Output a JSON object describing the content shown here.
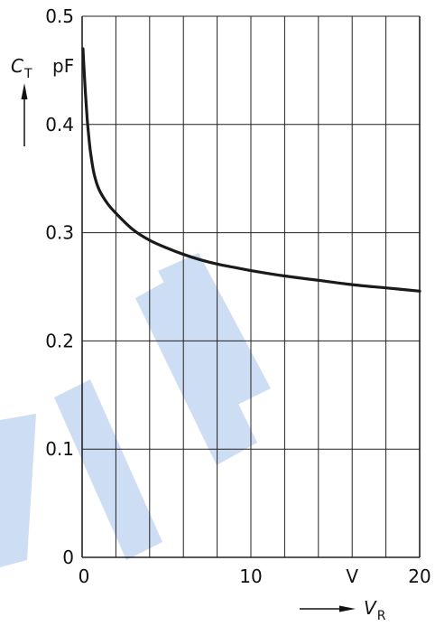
{
  "chart_data": {
    "type": "line",
    "xlim": [
      0,
      20
    ],
    "ylim": [
      0,
      0.5
    ],
    "x_ticks": [
      {
        "value": 0,
        "label": "0"
      },
      {
        "value": 10,
        "label": "10"
      },
      {
        "value": 16,
        "label": "V"
      },
      {
        "value": 20,
        "label": "20"
      }
    ],
    "y_ticks": [
      {
        "value": 0,
        "label": "0"
      },
      {
        "value": 0.1,
        "label": "0.1"
      },
      {
        "value": 0.2,
        "label": "0.2"
      },
      {
        "value": 0.3,
        "label": "0.3"
      },
      {
        "value": 0.4,
        "label": "0.4"
      },
      {
        "value": 0.5,
        "label": "0.5"
      }
    ],
    "x_gridlines": [
      0,
      2,
      4,
      6,
      8,
      10,
      12,
      14,
      16,
      18,
      20
    ],
    "y_gridlines": [
      0,
      0.1,
      0.2,
      0.3,
      0.4,
      0.5
    ],
    "grid": true,
    "ylabel": {
      "symbol": "C",
      "subscript": "T",
      "unit": "pF"
    },
    "xlabel": {
      "symbol": "V",
      "subscript": "R"
    },
    "series": [
      {
        "x": [
          0.05,
          0.1,
          0.2,
          0.3,
          0.4,
          0.5,
          0.7,
          1.0,
          1.5,
          2.0,
          3.0,
          4.0,
          5.0,
          6.0,
          7.0,
          8.0,
          9.0,
          10.0,
          12.0,
          14.0,
          16.0,
          18.0,
          20.0
        ],
        "values": [
          0.47,
          0.455,
          0.428,
          0.405,
          0.388,
          0.374,
          0.355,
          0.34,
          0.327,
          0.318,
          0.303,
          0.293,
          0.286,
          0.28,
          0.275,
          0.271,
          0.268,
          0.265,
          0.26,
          0.256,
          0.252,
          0.249,
          0.246
        ]
      }
    ],
    "colors": {
      "line": "#1a1a1a",
      "grid": "#222222",
      "watermark": "#cdddf3"
    }
  }
}
